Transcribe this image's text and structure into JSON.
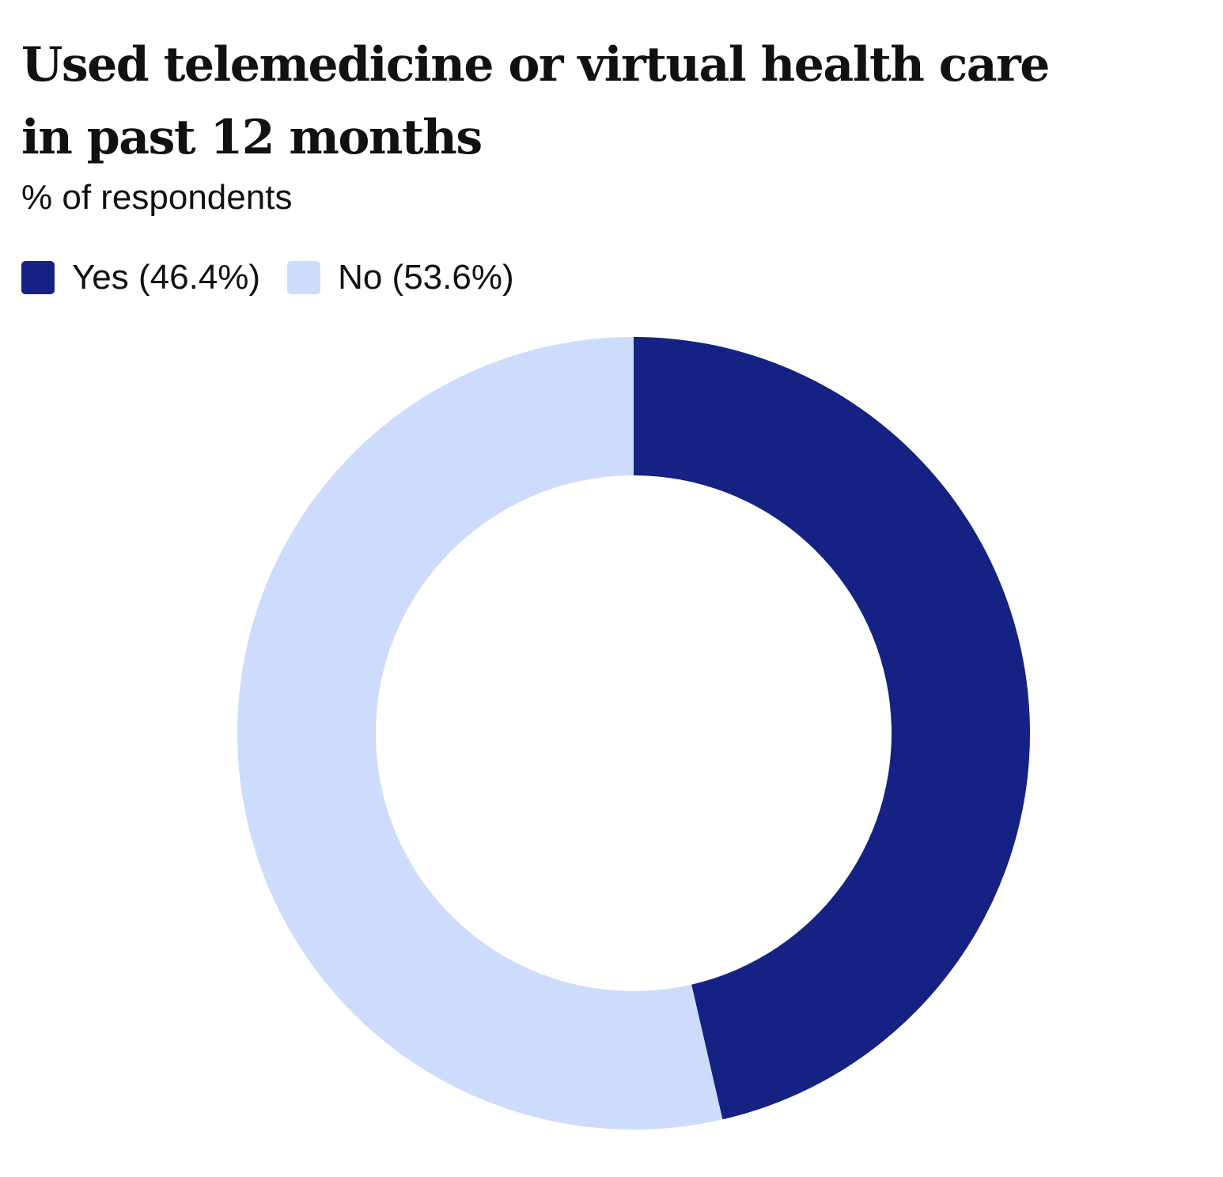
{
  "chart_data": {
    "type": "pie",
    "variant": "donut",
    "title": "Used telemedicine or virtual health care in past 12 months",
    "subtitle": "% of respondents",
    "categories": [
      "Yes",
      "No"
    ],
    "values": [
      46.4,
      53.6
    ],
    "unit": "%",
    "legend": [
      {
        "label": "Yes (46.4%)",
        "color": "#152283"
      },
      {
        "label": "No (53.6%)",
        "color": "#cddcfc"
      }
    ],
    "colors": [
      "#152283",
      "#cddcfc"
    ],
    "legend_position": "top-left",
    "start_angle": "12 o'clock",
    "direction": "clockwise"
  }
}
